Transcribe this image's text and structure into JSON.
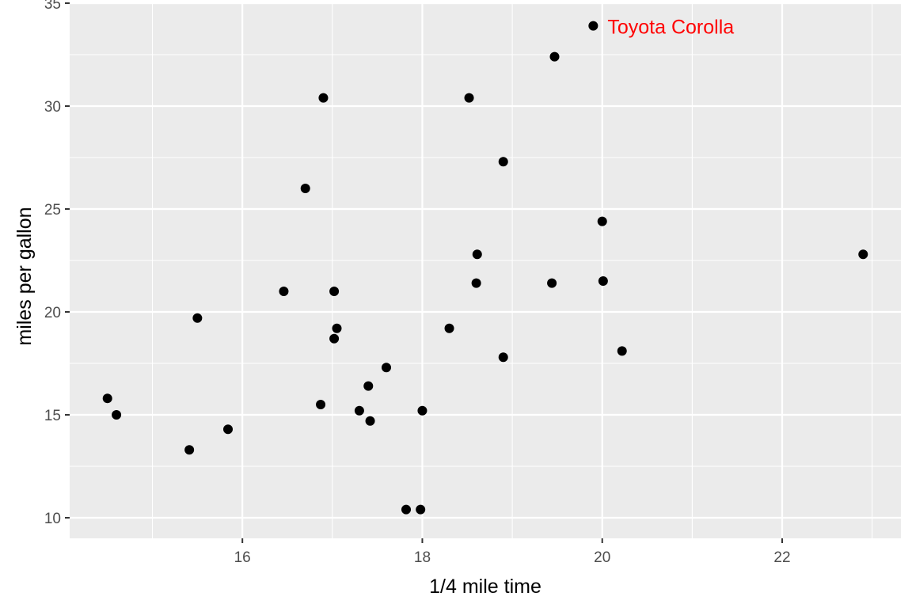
{
  "chart_data": {
    "type": "scatter",
    "title": "",
    "xlabel": "1/4 mile time",
    "ylabel": "miles per gallon",
    "xlim": [
      14.08,
      23.32
    ],
    "ylim": [
      9.0,
      35.0
    ],
    "x_ticks": [
      16,
      18,
      20,
      22
    ],
    "y_ticks": [
      10,
      15,
      20,
      25,
      30,
      35
    ],
    "grid": true,
    "legend": "none",
    "colors": {
      "panel_background": "#ebebeb",
      "grid_major": "#ffffff",
      "point": "#000000",
      "annotation": "#ff0000"
    },
    "points": [
      {
        "x": 16.46,
        "y": 21.0
      },
      {
        "x": 17.02,
        "y": 21.0
      },
      {
        "x": 18.61,
        "y": 22.8
      },
      {
        "x": 19.44,
        "y": 21.4
      },
      {
        "x": 17.02,
        "y": 18.7
      },
      {
        "x": 20.22,
        "y": 18.1
      },
      {
        "x": 15.84,
        "y": 14.3
      },
      {
        "x": 20.0,
        "y": 24.4
      },
      {
        "x": 22.9,
        "y": 22.8
      },
      {
        "x": 18.3,
        "y": 19.2
      },
      {
        "x": 18.9,
        "y": 17.8
      },
      {
        "x": 17.4,
        "y": 16.4
      },
      {
        "x": 17.6,
        "y": 17.3
      },
      {
        "x": 18.0,
        "y": 15.2
      },
      {
        "x": 17.98,
        "y": 10.4
      },
      {
        "x": 17.82,
        "y": 10.4
      },
      {
        "x": 17.42,
        "y": 14.7
      },
      {
        "x": 19.47,
        "y": 32.4
      },
      {
        "x": 18.52,
        "y": 30.4
      },
      {
        "x": 19.9,
        "y": 33.9
      },
      {
        "x": 20.01,
        "y": 21.5
      },
      {
        "x": 16.87,
        "y": 15.5
      },
      {
        "x": 17.3,
        "y": 15.2
      },
      {
        "x": 15.41,
        "y": 13.3
      },
      {
        "x": 17.05,
        "y": 19.2
      },
      {
        "x": 18.9,
        "y": 27.3
      },
      {
        "x": 16.7,
        "y": 26.0
      },
      {
        "x": 16.9,
        "y": 30.4
      },
      {
        "x": 14.5,
        "y": 15.8
      },
      {
        "x": 15.5,
        "y": 19.7
      },
      {
        "x": 14.6,
        "y": 15.0
      },
      {
        "x": 18.6,
        "y": 21.4
      }
    ],
    "annotations": [
      {
        "text": "Toyota Corolla",
        "x": 19.9,
        "y": 33.9,
        "color": "#ff0000"
      }
    ]
  }
}
